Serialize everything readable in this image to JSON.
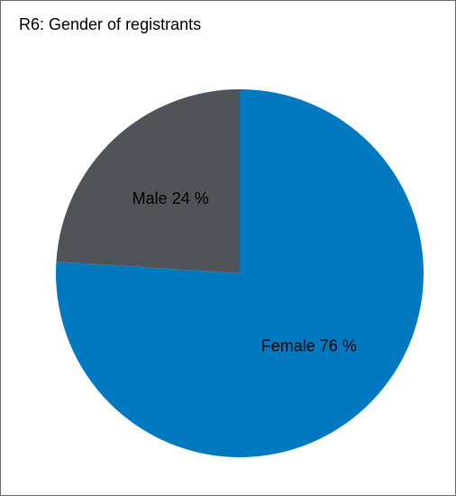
{
  "chart_data": {
    "type": "pie",
    "title": "R6: Gender of registrants",
    "slices": [
      {
        "label": "Female",
        "value": 76,
        "display": "Female 76 %",
        "color": "#0079c1"
      },
      {
        "label": "Male",
        "value": 24,
        "display": "Male 24 %",
        "color": "#505459"
      }
    ],
    "legend": "none"
  }
}
